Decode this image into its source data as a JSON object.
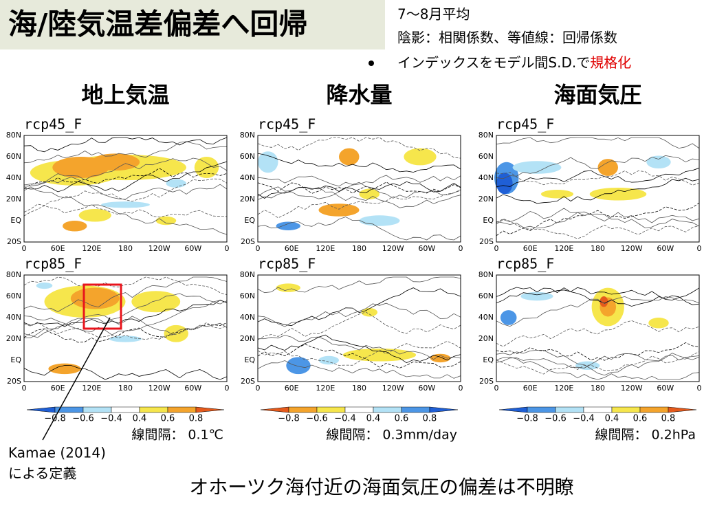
{
  "title": "海/陸気温差偏差へ回帰",
  "notes": [
    "7～8月平均",
    "陰影：相関係数、等値線：回帰係数"
  ],
  "bullet": {
    "text": "インデックスをモデル間S.D.で",
    "highlight": "規格化"
  },
  "columns": [
    {
      "header": "地上気温",
      "panels": [
        "rcp45_F",
        "rcp85_F"
      ],
      "colorbar": [
        "−0.8",
        "−0.6",
        "−0.4",
        "0.4",
        "0.6",
        "0.8"
      ],
      "contour_interval": "線間隔：  0.1℃"
    },
    {
      "header": "降水量",
      "panels": [
        "rcp45_F",
        "rcp85_F"
      ],
      "colorbar": [
        "−0.8",
        "−0.6",
        "−0.4",
        "0.4",
        "0.6",
        "0.8"
      ],
      "contour_interval": "線間隔：  0.3mm/day"
    },
    {
      "header": "海面気圧",
      "panels": [
        "rcp45_F",
        "rcp85_F"
      ],
      "colorbar": [
        "−0.8",
        "−0.6",
        "−0.4",
        "0.4",
        "0.6",
        "0.8"
      ],
      "contour_interval": "線間隔：  0.2hPa"
    }
  ],
  "lat_ticks": [
    "80N",
    "60N",
    "40N",
    "20N",
    "EQ",
    "20S"
  ],
  "lon_ticks": [
    "0",
    "60E",
    "120E",
    "180",
    "120W",
    "60W",
    "0"
  ],
  "annotation": [
    "Kamae (2014)",
    "による定義"
  ],
  "footer": "オホーツク海付近の海面気圧の偏差は不明瞭"
}
